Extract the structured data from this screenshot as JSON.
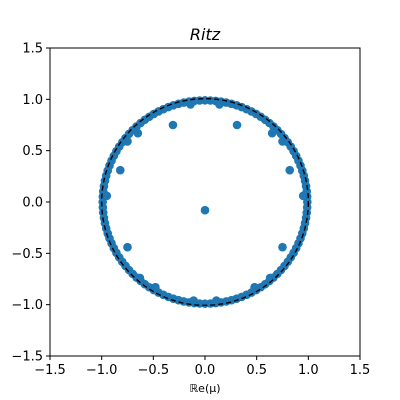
{
  "chart_data": {
    "type": "scatter",
    "title": "Ritz",
    "xlabel": "ℝe(μ)",
    "ylabel": "",
    "xlim": [
      -1.5,
      1.5
    ],
    "ylim": [
      -1.5,
      1.5
    ],
    "xticks": [
      "−1.5",
      "−1.0",
      "−0.5",
      "0.0",
      "0.5",
      "1.0",
      "1.5"
    ],
    "yticks": [
      "−1.5",
      "−1.0",
      "−0.5",
      "0.0",
      "0.5",
      "1.0",
      "1.5"
    ],
    "grid": false,
    "reference_curve": {
      "shape": "unit-circle",
      "radius": 1.0,
      "style": "dashed",
      "color": "#000000"
    },
    "marker_color": "#1f77b4",
    "ring_points": {
      "radius": 0.99,
      "angles_deg": [
        0,
        3,
        6,
        9,
        12,
        15,
        18,
        21,
        24,
        27,
        30,
        33,
        36,
        39,
        42,
        45,
        48,
        51,
        54,
        57,
        60,
        63,
        66,
        69,
        72,
        75,
        78,
        81,
        84,
        87,
        90,
        93,
        96,
        99,
        102,
        105,
        108,
        111,
        114,
        117,
        120,
        123,
        126,
        129,
        132,
        135,
        138,
        141,
        144,
        147,
        150,
        153,
        156,
        159,
        162,
        165,
        168,
        171,
        174,
        177,
        180,
        183,
        186,
        189,
        192,
        195,
        198,
        201,
        204,
        207,
        210,
        213,
        216,
        219,
        222,
        225,
        228,
        231,
        234,
        237,
        240,
        243,
        246,
        249,
        252,
        255,
        258,
        261,
        264,
        267,
        270,
        273,
        276,
        279,
        282,
        285,
        288,
        291,
        294,
        297,
        300,
        303,
        306,
        309,
        312,
        315,
        318,
        321,
        324,
        327,
        330,
        333,
        336,
        339,
        342,
        345,
        348,
        351,
        354,
        357
      ]
    },
    "points": [
      {
        "x": 0.0,
        "y": -0.08
      },
      {
        "x": 0.31,
        "y": 0.75
      },
      {
        "x": -0.31,
        "y": 0.75
      },
      {
        "x": 0.82,
        "y": 0.31
      },
      {
        "x": -0.82,
        "y": 0.31
      },
      {
        "x": 0.75,
        "y": -0.44
      },
      {
        "x": -0.75,
        "y": -0.44
      },
      {
        "x": 0.65,
        "y": 0.67
      },
      {
        "x": -0.65,
        "y": 0.67
      },
      {
        "x": 0.75,
        "y": 0.59
      },
      {
        "x": -0.75,
        "y": 0.59
      },
      {
        "x": 0.95,
        "y": 0.06
      },
      {
        "x": -0.95,
        "y": 0.06
      },
      {
        "x": 0.63,
        "y": -0.74
      },
      {
        "x": -0.63,
        "y": -0.74
      },
      {
        "x": 0.48,
        "y": -0.83
      },
      {
        "x": -0.48,
        "y": -0.83
      },
      {
        "x": 0.11,
        "y": -0.96
      },
      {
        "x": -0.11,
        "y": -0.96
      },
      {
        "x": 0.14,
        "y": 0.95
      },
      {
        "x": -0.14,
        "y": 0.95
      }
    ]
  }
}
